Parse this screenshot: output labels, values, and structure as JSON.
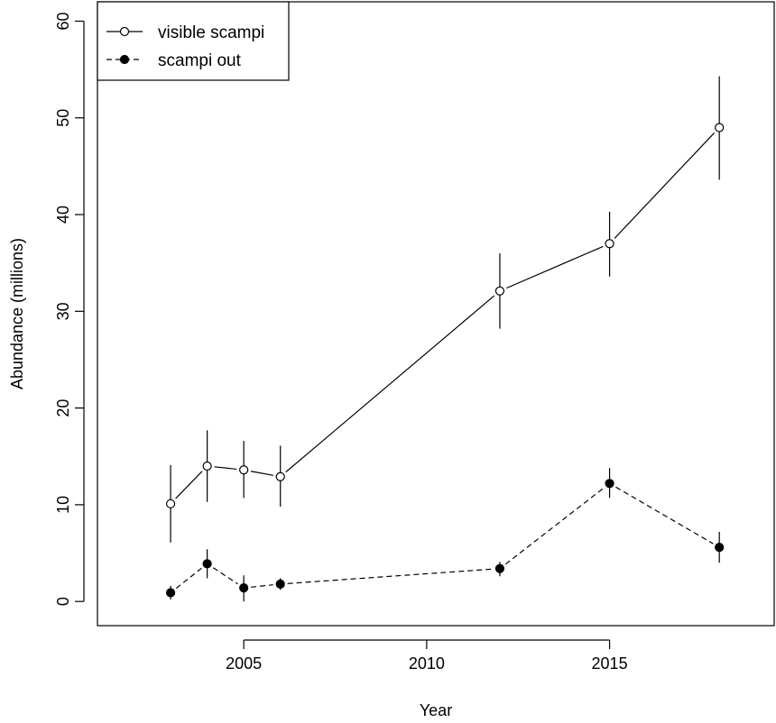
{
  "chart_data": {
    "type": "line",
    "xlabel": "Year",
    "ylabel": "Abundance (millions)",
    "xlim": [
      2001,
      2019.5
    ],
    "ylim": [
      -2.5,
      62
    ],
    "x_ticks": [
      2005,
      2010,
      2015
    ],
    "y_ticks": [
      0,
      10,
      20,
      30,
      40,
      50,
      60
    ],
    "grid": false,
    "legend": "top-left",
    "series": [
      {
        "name": "visible scampi",
        "marker": "open-circle",
        "line_style": "solid",
        "color": "#000000",
        "points": [
          {
            "x": 2003,
            "y": 10.1,
            "lo": 6.1,
            "hi": 14.1
          },
          {
            "x": 2004,
            "y": 14.0,
            "lo": 10.3,
            "hi": 17.7
          },
          {
            "x": 2005,
            "y": 13.6,
            "lo": 10.7,
            "hi": 16.6
          },
          {
            "x": 2006,
            "y": 12.9,
            "lo": 9.8,
            "hi": 16.1
          },
          {
            "x": 2012,
            "y": 32.1,
            "lo": 28.2,
            "hi": 36.0
          },
          {
            "x": 2015,
            "y": 37.0,
            "lo": 33.6,
            "hi": 40.3
          },
          {
            "x": 2018,
            "y": 49.0,
            "lo": 43.6,
            "hi": 54.3
          }
        ]
      },
      {
        "name": "scampi out",
        "marker": "filled-circle",
        "line_style": "dashed",
        "color": "#000000",
        "points": [
          {
            "x": 2003,
            "y": 0.9,
            "lo": 0.2,
            "hi": 1.6
          },
          {
            "x": 2004,
            "y": 3.9,
            "lo": 2.4,
            "hi": 5.4
          },
          {
            "x": 2005,
            "y": 1.4,
            "lo": 0.0,
            "hi": 2.7
          },
          {
            "x": 2006,
            "y": 1.8,
            "lo": 1.2,
            "hi": 2.4
          },
          {
            "x": 2012,
            "y": 3.4,
            "lo": 2.6,
            "hi": 4.1
          },
          {
            "x": 2015,
            "y": 12.2,
            "lo": 10.7,
            "hi": 13.8
          },
          {
            "x": 2018,
            "y": 5.6,
            "lo": 4.0,
            "hi": 7.2
          }
        ]
      }
    ]
  }
}
